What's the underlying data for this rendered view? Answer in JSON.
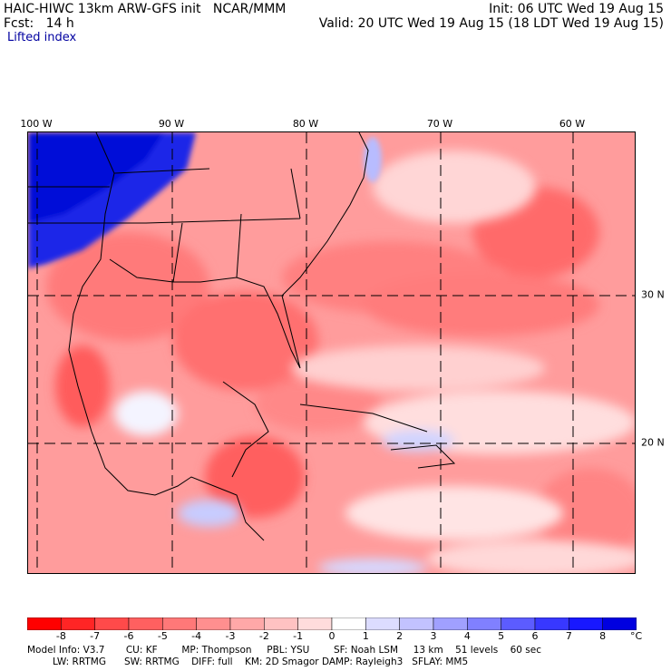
{
  "header": {
    "line1_left": "HAIC-HIWC 13km ARW-GFS init   NCAR/MMM",
    "line2_left": "Fcst:   14 h",
    "line1_right": "Init: 06 UTC Wed 19 Aug 15",
    "line2_right": "Valid: 20 UTC Wed 19 Aug 15 (18 LDT Wed 19 Aug 15)",
    "field": "Lifted index"
  },
  "axes": {
    "longitude_labels": [
      "100 W",
      "90 W",
      "80 W",
      "70 W",
      "60 W"
    ],
    "latitude_labels": [
      "30 N",
      "20 N"
    ]
  },
  "colorbar": {
    "tick_labels": [
      "-8",
      "-7",
      "-6",
      "-5",
      "-4",
      "-3",
      "-2",
      "-1",
      "0",
      "1",
      "2",
      "3",
      "4",
      "5",
      "6",
      "7",
      "8"
    ],
    "unit": "°C",
    "colors": [
      "#ff0000",
      "#ff2525",
      "#ff4a4a",
      "#ff6060",
      "#ff7878",
      "#ff8f8f",
      "#ffa8a8",
      "#ffc2c2",
      "#ffdcdc",
      "#ffffff",
      "#dcdcff",
      "#c2c2ff",
      "#a0a0ff",
      "#8080ff",
      "#5c5cff",
      "#3838ff",
      "#1818ff",
      "#0000e0"
    ]
  },
  "model_info": {
    "line1": "Model Info: V3.7       CU: KF        MP: Thompson     PBL: YSU        SF: Noah LSM     13 km    51 levels    60 sec",
    "line2": "LW: RRTMG      SW: RRTMG    DIFF: full    KM: 2D Smagor DAMP: Rayleigh3   SFLAY: MM5"
  },
  "colors": {
    "background_field": "#ff9a9a",
    "strong_unstable": "#ff5a5a",
    "stable_blue": "#1020e0",
    "coast_lines": "#000000"
  }
}
